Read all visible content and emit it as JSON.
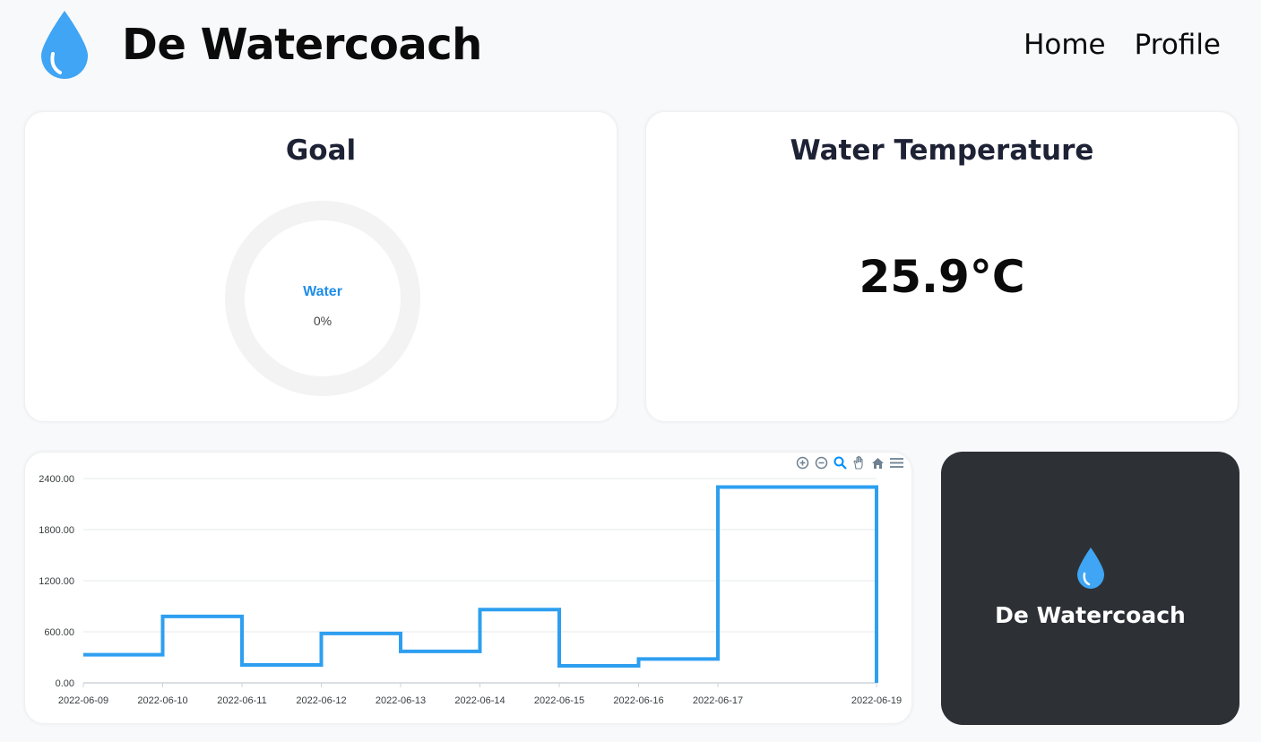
{
  "header": {
    "app_title": "De Watercoach",
    "nav": [
      {
        "label": "Home"
      },
      {
        "label": "Profile"
      }
    ]
  },
  "goal_card": {
    "title": "Goal",
    "donut_label": "Water",
    "donut_value": "0%",
    "progress_fraction": 0
  },
  "temperature_card": {
    "title": "Water Temperature",
    "value": "25.9°C"
  },
  "brand_card": {
    "name": "De Watercoach"
  },
  "colors": {
    "accent": "#2e9ff0",
    "drop_blue": "#3fa5f4",
    "brand_card_bg": "#2d3136",
    "donut_track": "#f3f3f3",
    "donut_label": "#1f8ee9"
  },
  "icons": [
    "water-drop-icon",
    "zoom-in-icon",
    "zoom-out-icon",
    "selection-zoom-icon",
    "pan-hand-icon",
    "reset-home-icon",
    "menu-icon"
  ],
  "chart_data": {
    "type": "line",
    "curve": "stepline",
    "ylim": [
      0,
      2400
    ],
    "y_ticks": [
      "0.00",
      "600.00",
      "1200.00",
      "1800.00",
      "2400.00"
    ],
    "x_tick_labels": [
      "2022-06-09",
      "2022-06-10",
      "2022-06-11",
      "2022-06-12",
      "2022-06-13",
      "2022-06-14",
      "2022-06-15",
      "2022-06-16",
      "2022-06-17",
      "2022-06-19"
    ],
    "series": [
      {
        "x": [
          "2022-06-09",
          "2022-06-10",
          "2022-06-11",
          "2022-06-12",
          "2022-06-13",
          "2022-06-14",
          "2022-06-15",
          "2022-06-16",
          "2022-06-17",
          "2022-06-19"
        ],
        "values": [
          330,
          780,
          210,
          580,
          370,
          860,
          200,
          280,
          2300,
          0
        ]
      }
    ],
    "grid": true,
    "legend": "none"
  }
}
